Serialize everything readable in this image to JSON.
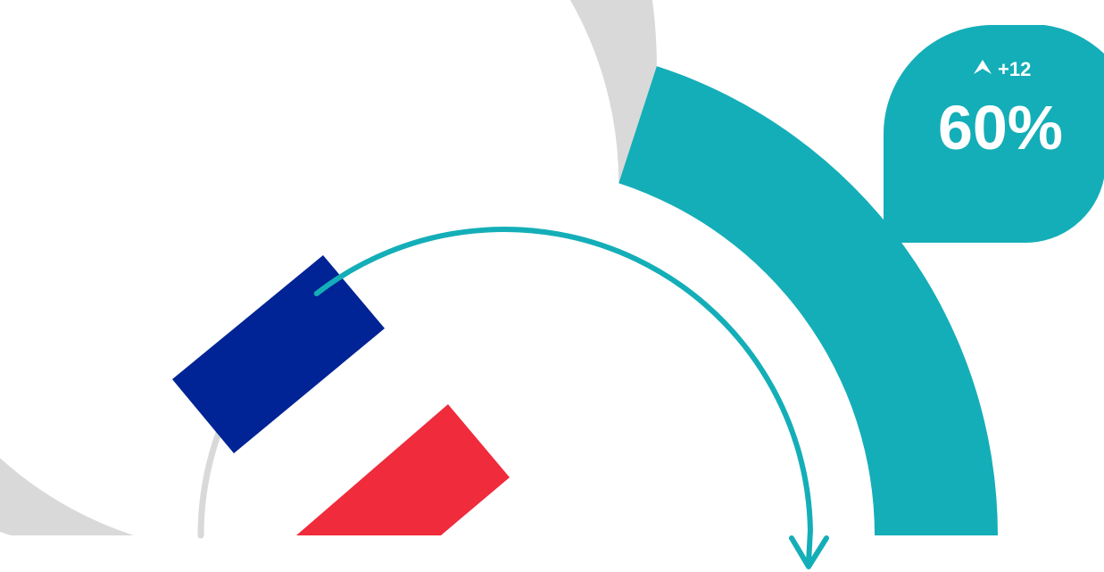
{
  "chart_data": {
    "type": "gauge",
    "value": 60,
    "min": 0,
    "max": 100,
    "value_label": "60%",
    "change_label": "+12",
    "change_direction": "up",
    "colors": {
      "track": "#d9d9d9",
      "fill": "#14aeb8",
      "arrow": "#14aeb8",
      "inner_track": "#d9d9d9",
      "flag_blue": "#002395",
      "flag_white": "#ffffff",
      "flag_red": "#ef2b3c"
    }
  },
  "badge": {
    "change_icon": "caret-up-icon"
  },
  "decoration": {
    "flag_icon": "france-flag-icon",
    "arrow_icon": "curved-arrow-icon"
  }
}
